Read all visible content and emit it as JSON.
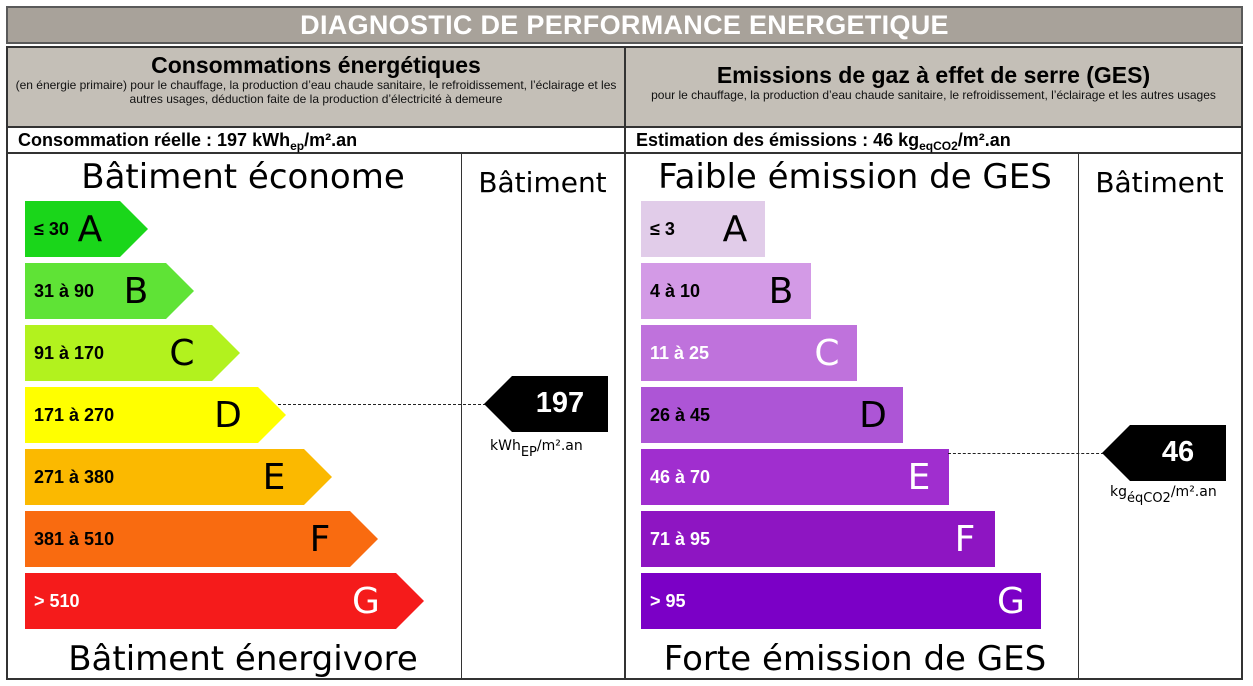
{
  "title": "DIAGNOSTIC DE PERFORMANCE ENERGETIQUE",
  "energy": {
    "heading": "Consommations énergétiques",
    "subheading": "(en énergie primaire) pour le chauffage, la production d’eau chaude sanitaire, le refroidissement, l’éclairage et les autres usages, déduction faite de la production d’électricité à demeure",
    "measure": {
      "prefix": "Consommation réelle : 197 kWh",
      "sub": "ep",
      "suffix": "/m².an"
    },
    "top_caption": "Bâtiment économe",
    "bottom_caption": "Bâtiment énergivore",
    "column_label": "Bâtiment",
    "marker": {
      "value": "197",
      "unit_pre": "kWh",
      "unit_sub": "EP",
      "unit_post": "/m².an"
    }
  },
  "ges": {
    "heading": "Emissions de gaz à effet de serre (GES)",
    "subheading": "pour le chauffage, la production d’eau chaude sanitaire, le refroidissement, l’éclairage et les autres usages",
    "measure": {
      "prefix": "Estimation des émissions : 46 kg",
      "sub": "eqCO2",
      "suffix": "/m².an"
    },
    "top_caption": "Faible émission de GES",
    "bottom_caption": "Forte émission de GES",
    "column_label": "Bâtiment",
    "marker": {
      "value": "46",
      "unit_pre": "kg",
      "unit_sub": "éqCO2",
      "unit_post": "/m².an"
    }
  },
  "chart_data": [
    {
      "type": "bar",
      "title": "Consommations énergétiques",
      "categories": [
        "A",
        "B",
        "C",
        "D",
        "E",
        "F",
        "G"
      ],
      "ranges": [
        "≤ 30",
        "31 à 90",
        "91 à 170",
        "171 à 270",
        "271 à 380",
        "381 à 510",
        "> 510"
      ],
      "colors": [
        "#1ad61a",
        "#5fe336",
        "#b2f21e",
        "#ffff00",
        "#fbb900",
        "#f96b10",
        "#f51b1b"
      ],
      "text_colors": [
        "#000000",
        "#000000",
        "#000000",
        "#000000",
        "#000000",
        "#000000",
        "#ffffff"
      ],
      "current_class": "D",
      "current_value": 197,
      "unit": "kWhEP/m².an"
    },
    {
      "type": "bar",
      "title": "Emissions de gaz à effet de serre (GES)",
      "categories": [
        "A",
        "B",
        "C",
        "D",
        "E",
        "F",
        "G"
      ],
      "ranges": [
        "≤ 3",
        "4 à 10",
        "11 à 25",
        "26 à 45",
        "46 à 70",
        "71 à 95",
        "> 95"
      ],
      "colors": [
        "#e1cce9",
        "#d39ae6",
        "#bf72dc",
        "#ad55d6",
        "#a02ecf",
        "#8e15c2",
        "#7b00c6"
      ],
      "text_colors": [
        "#000000",
        "#000000",
        "#ffffff",
        "#000000",
        "#ffffff",
        "#ffffff",
        "#ffffff"
      ],
      "current_class": "E",
      "current_value": 46,
      "unit": "kgéqCO2/m².an"
    }
  ]
}
